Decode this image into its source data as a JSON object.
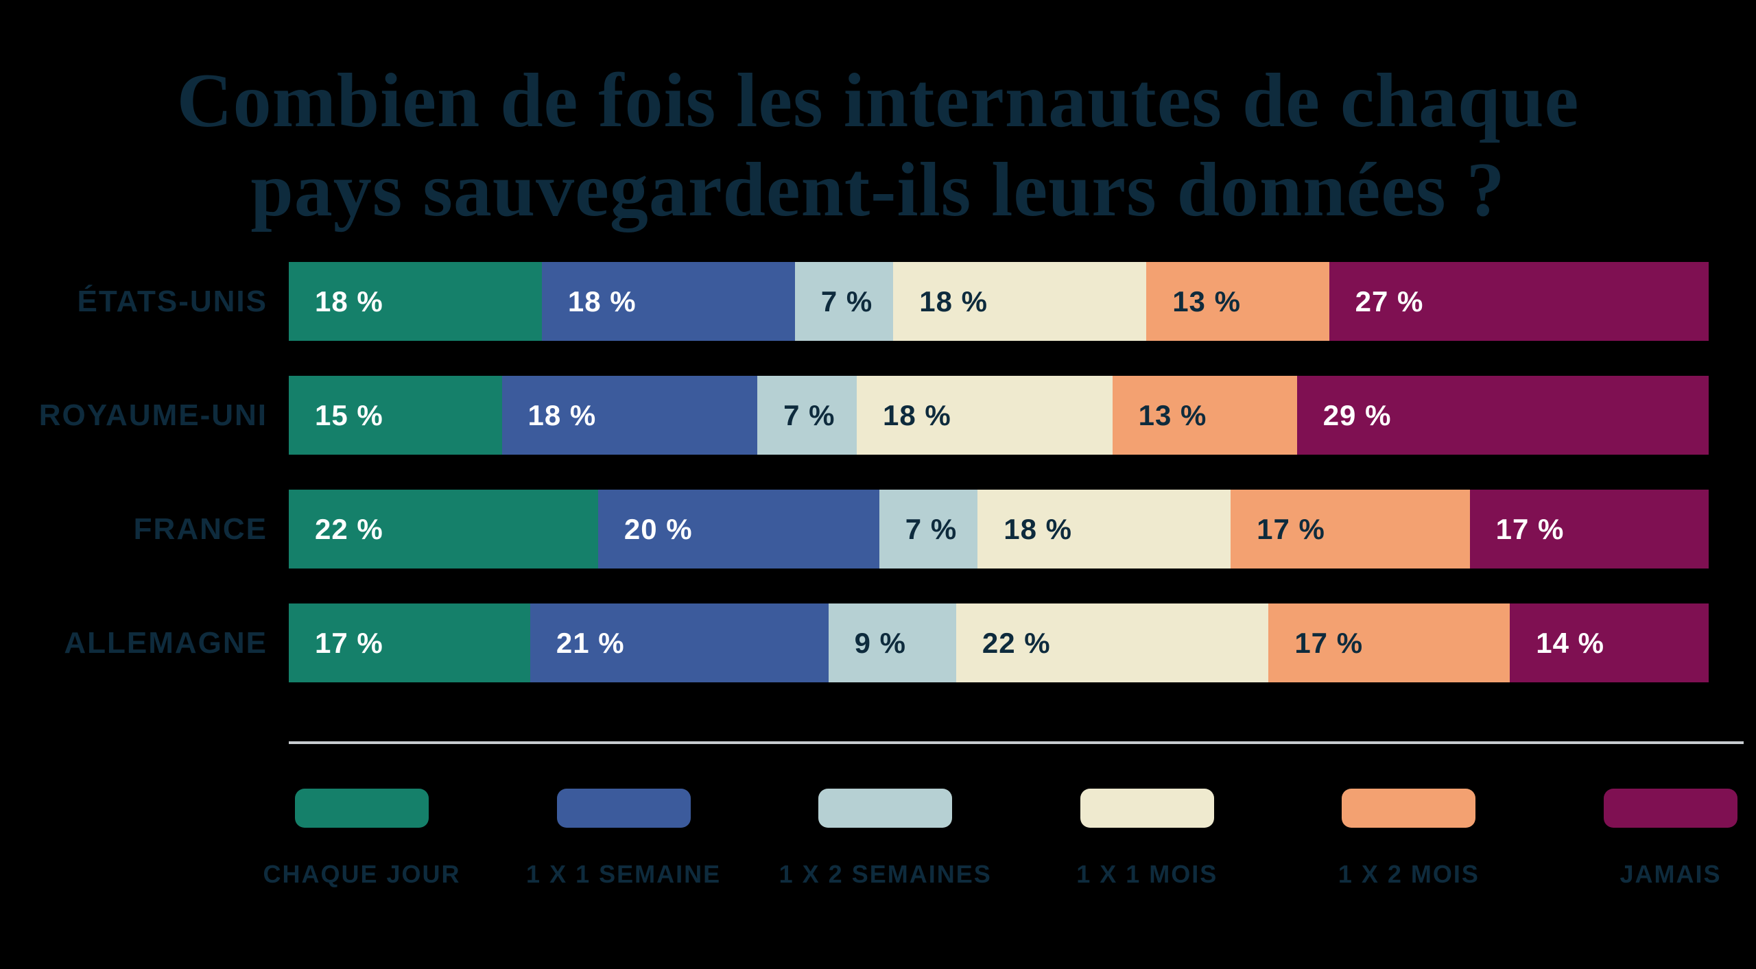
{
  "title": {
    "line1": "Combien de fois les internautes de chaque",
    "line2": "pays sauvegardent-ils leurs données ?"
  },
  "colors": {
    "background": "#000000",
    "navy_text": "#0E2B3D",
    "divider": "#C8CCD0",
    "white_text": "#FFFFFF"
  },
  "chart_data": {
    "type": "bar",
    "orientation": "horizontal-stacked",
    "unit": "%",
    "value_suffix": " %",
    "grid": false,
    "legend_position": "bottom",
    "categories": [
      {
        "label": "CHAQUE JOUR",
        "color": "#15806A",
        "text_color": "#FFFFFF"
      },
      {
        "label": "1 X 1 SEMAINE",
        "color": "#3C5B9C",
        "text_color": "#FFFFFF"
      },
      {
        "label": "1 X 2 SEMAINES",
        "color": "#B6D0D3",
        "text_color": "#0E2B3D"
      },
      {
        "label": "1 X 1 MOIS",
        "color": "#EFEACF",
        "text_color": "#0E2B3D"
      },
      {
        "label": "1 X 2 MOIS",
        "color": "#F3A171",
        "text_color": "#0E2B3D"
      },
      {
        "label": "JAMAIS",
        "color": "#7F1052",
        "text_color": "#FFFFFF"
      }
    ],
    "rows": [
      {
        "label": "ÉTATS-UNIS",
        "values": [
          18,
          18,
          7,
          18,
          13,
          27
        ]
      },
      {
        "label": "ROYAUME-UNI",
        "values": [
          15,
          18,
          7,
          18,
          13,
          29
        ]
      },
      {
        "label": "FRANCE",
        "values": [
          22,
          20,
          7,
          18,
          17,
          17
        ]
      },
      {
        "label": "ALLEMAGNE",
        "values": [
          17,
          21,
          9,
          22,
          17,
          14
        ]
      }
    ]
  }
}
